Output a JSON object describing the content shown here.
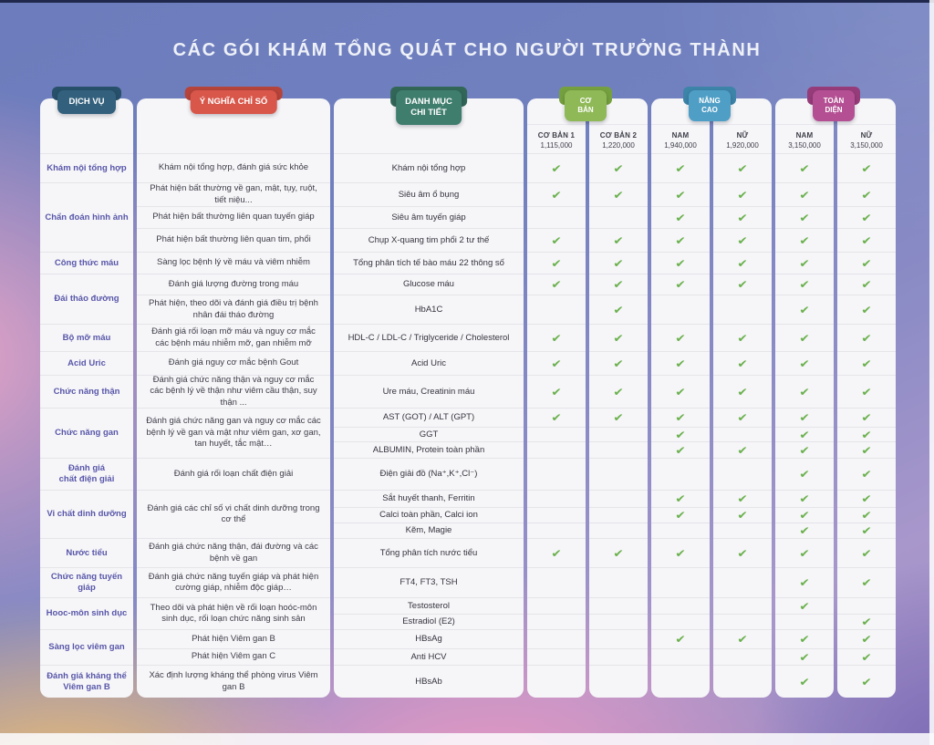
{
  "title": "CÁC GÓI KHÁM TỔNG QUÁT CHO NGƯỜI TRƯỞNG THÀNH",
  "check_color": "#6bb14e",
  "main_columns": [
    {
      "tab": "DỊCH VỤ",
      "color": "#33617d",
      "dark": "#27506a"
    },
    {
      "tab": "Ý NGHĨA CHỈ SỐ",
      "color": "#d8564a",
      "dark": "#b6443a"
    },
    {
      "tab": "DANH MỤC\nCHI TIẾT",
      "color": "#3f7d6d",
      "dark": "#326758"
    }
  ],
  "packages": [
    {
      "tab": "CƠ BẢN",
      "color": "#8fb957",
      "dark": "#75a03f",
      "cols": [
        {
          "name": "CƠ BẢN 1",
          "price": "1,115,000"
        },
        {
          "name": "CƠ BẢN 2",
          "price": "1,220,000"
        }
      ]
    },
    {
      "tab": "NÂNG CAO",
      "color": "#4f9ec6",
      "dark": "#3d84a9",
      "cols": [
        {
          "name": "NAM",
          "price": "1,940,000"
        },
        {
          "name": "NỮ",
          "price": "1,920,000"
        }
      ]
    },
    {
      "tab": "TOÀN DIỆN",
      "color": "#b44f93",
      "dark": "#963c7a",
      "cols": [
        {
          "name": "NAM",
          "price": "3,150,000"
        },
        {
          "name": "NỮ",
          "price": "3,150,000"
        }
      ]
    }
  ],
  "service_groups": [
    {
      "label": "Khám nội tổng hợp",
      "row": 1,
      "span": 1
    },
    {
      "label": "Chẩn đoán hình ảnh",
      "row": 2,
      "span": 3
    },
    {
      "label": "Công thức máu",
      "row": 5,
      "span": 1
    },
    {
      "label": "Đái tháo đường",
      "row": 6,
      "span": 2
    },
    {
      "label": "Bộ mỡ máu",
      "row": 8,
      "span": 1
    },
    {
      "label": "Acid Uric",
      "row": 9,
      "span": 1
    },
    {
      "label": "Chức năng thận",
      "row": 10,
      "span": 1
    },
    {
      "label": "Chức năng gan",
      "row": 11,
      "span": 3
    },
    {
      "label": "Đánh giá\nchất điện giải",
      "row": 14,
      "span": 1
    },
    {
      "label": "Vi chất dinh dưỡng",
      "row": 15,
      "span": 3
    },
    {
      "label": "Nước tiểu",
      "row": 18,
      "span": 1
    },
    {
      "label": "Chức năng tuyến giáp",
      "row": 19,
      "span": 1
    },
    {
      "label": "Hooc-môn sinh dục",
      "row": 20,
      "span": 2
    },
    {
      "label": "Sàng lọc viêm gan",
      "row": 22,
      "span": 2
    },
    {
      "label": "Đánh giá kháng thể\nViêm gan B",
      "row": 24,
      "span": 1
    }
  ],
  "meaning_groups": [
    {
      "text": "Khám nội tổng hợp, đánh giá sức khỏe",
      "row": 1,
      "span": 1
    },
    {
      "text": "Phát hiện bất thường về gan, mật, tụy, ruột, tiết niệu...",
      "row": 2,
      "span": 1
    },
    {
      "text": "Phát hiện bất thường liên quan tuyến giáp",
      "row": 3,
      "span": 1
    },
    {
      "text": "Phát hiện bất thường liên quan tim, phổi",
      "row": 4,
      "span": 1
    },
    {
      "text": "Sàng lọc bệnh lý về máu và viêm nhiễm",
      "row": 5,
      "span": 1
    },
    {
      "text": "Đánh giá lượng đường trong máu",
      "row": 6,
      "span": 1
    },
    {
      "text": "Phát hiện, theo dõi và đánh giá điều trị bệnh nhân đái tháo đường",
      "row": 7,
      "span": 1
    },
    {
      "text": "Đánh giá rối loạn mỡ máu và nguy cơ mắc các bệnh máu nhiễm mỡ, gan nhiễm mỡ",
      "row": 8,
      "span": 1
    },
    {
      "text": "Đánh giá nguy cơ mắc bệnh Gout",
      "row": 9,
      "span": 1
    },
    {
      "text": "Đánh giá chức năng thận và nguy cơ mắc các bệnh lý về thận như viêm cầu thận, suy thận ...",
      "row": 10,
      "span": 1
    },
    {
      "text": "Đánh giá chức năng gan và nguy cơ mắc các bệnh lý về gan và mật như viêm gan, xơ gan, tan huyết, tắc mật…",
      "row": 11,
      "span": 3
    },
    {
      "text": "Đánh giá rối loạn chất điện giải",
      "row": 14,
      "span": 1
    },
    {
      "text": "Đánh giá các chỉ số vi chất dinh dưỡng trong cơ thể",
      "row": 15,
      "span": 3
    },
    {
      "text": "Đánh giá chức năng thận, đái đường và các bệnh về gan",
      "row": 18,
      "span": 1
    },
    {
      "text": "Đánh giá chức năng tuyến giáp và phát hiện cường giáp, nhiễm độc giáp…",
      "row": 19,
      "span": 1
    },
    {
      "text": "Theo dõi và phát hiện về rối loạn hoóc-môn sinh dục, rối loạn chức năng sinh sản",
      "row": 20,
      "span": 2
    },
    {
      "text": "Phát hiện Viêm gan B",
      "row": 22,
      "span": 1
    },
    {
      "text": "Phát hiện Viêm gan C",
      "row": 23,
      "span": 1
    },
    {
      "text": "Xác định lượng kháng thể phòng virus Viêm gan B",
      "row": 24,
      "span": 1
    }
  ],
  "rows": [
    {
      "detail": "Khám nội tổng hợp",
      "checks": [
        1,
        1,
        1,
        1,
        1,
        1
      ]
    },
    {
      "detail": "Siêu âm ổ bụng",
      "checks": [
        1,
        1,
        1,
        1,
        1,
        1
      ]
    },
    {
      "detail": "Siêu âm tuyến giáp",
      "checks": [
        0,
        0,
        1,
        1,
        1,
        1
      ]
    },
    {
      "detail": "Chụp X-quang tim phổi 2 tư thế",
      "checks": [
        1,
        1,
        1,
        1,
        1,
        1
      ]
    },
    {
      "detail": "Tổng phân tích tế bào máu 22 thông số",
      "checks": [
        1,
        1,
        1,
        1,
        1,
        1
      ]
    },
    {
      "detail": "Glucose máu",
      "checks": [
        1,
        1,
        1,
        1,
        1,
        1
      ]
    },
    {
      "detail": "HbA1C",
      "checks": [
        0,
        1,
        0,
        0,
        1,
        1
      ]
    },
    {
      "detail": "HDL-C / LDL-C / Triglyceride / Cholesterol",
      "checks": [
        1,
        1,
        1,
        1,
        1,
        1
      ]
    },
    {
      "detail": "Acid Uric",
      "checks": [
        1,
        1,
        1,
        1,
        1,
        1
      ]
    },
    {
      "detail": "Ure máu, Creatinin máu",
      "checks": [
        1,
        1,
        1,
        1,
        1,
        1
      ]
    },
    {
      "detail": "AST (GOT) / ALT (GPT)",
      "checks": [
        1,
        1,
        1,
        1,
        1,
        1
      ]
    },
    {
      "detail": "GGT",
      "checks": [
        0,
        0,
        1,
        0,
        1,
        1
      ]
    },
    {
      "detail": "ALBUMIN, Protein toàn phần",
      "checks": [
        0,
        0,
        1,
        1,
        1,
        1
      ]
    },
    {
      "detail": "Điện giải đồ (Na⁺,K⁺,Cl⁻)",
      "checks": [
        0,
        0,
        0,
        0,
        1,
        1
      ]
    },
    {
      "detail": "Sắt huyết thanh, Ferritin",
      "checks": [
        0,
        0,
        1,
        1,
        1,
        1
      ]
    },
    {
      "detail": "Calci toàn phần, Calci ion",
      "checks": [
        0,
        0,
        1,
        1,
        1,
        1
      ]
    },
    {
      "detail": "Kẽm, Magie",
      "checks": [
        0,
        0,
        0,
        0,
        1,
        1
      ]
    },
    {
      "detail": "Tổng phân tích nước tiểu",
      "checks": [
        1,
        1,
        1,
        1,
        1,
        1
      ]
    },
    {
      "detail": "FT4, FT3, TSH",
      "checks": [
        0,
        0,
        0,
        0,
        1,
        1
      ]
    },
    {
      "detail": "Testosterol",
      "checks": [
        0,
        0,
        0,
        0,
        1,
        0
      ]
    },
    {
      "detail": "Estradiol (E2)",
      "checks": [
        0,
        0,
        0,
        0,
        0,
        1
      ]
    },
    {
      "detail": "HBsAg",
      "checks": [
        0,
        0,
        1,
        1,
        1,
        1
      ]
    },
    {
      "detail": "Anti HCV",
      "checks": [
        0,
        0,
        0,
        0,
        1,
        1
      ]
    },
    {
      "detail": "HBsAb",
      "checks": [
        0,
        0,
        0,
        0,
        1,
        1
      ]
    }
  ]
}
